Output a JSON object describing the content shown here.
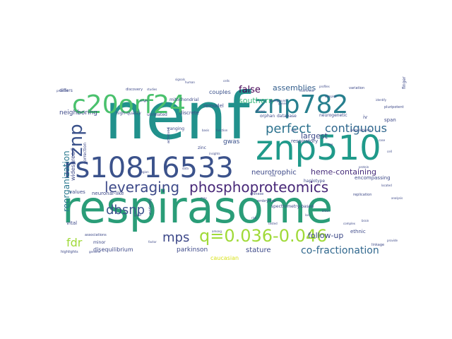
{
  "words": [
    {
      "text": "nenf",
      "color": "#21918c"
    },
    {
      "text": "respirasome",
      "color": "#2a9d78"
    },
    {
      "text": "znp510",
      "color": "#1f9a8a"
    },
    {
      "text": "znp782",
      "color": "#277f8e"
    },
    {
      "text": "c20orf24",
      "color": "#4ac16d"
    },
    {
      "text": "rs10816533",
      "color": "#3b528b"
    },
    {
      "text": "q=0.036-0.046",
      "color": "#a0da39"
    },
    {
      "text": "phosphoproteomics",
      "color": "#482878"
    },
    {
      "text": "leveraging",
      "color": "#3e4a89"
    },
    {
      "text": "perfect",
      "color": "#2c728e"
    },
    {
      "text": "contiguous",
      "color": "#31688e"
    },
    {
      "text": "dbsnp",
      "color": "#3b528b"
    },
    {
      "text": "mps",
      "color": "#3e4989"
    },
    {
      "text": "znp",
      "color": "#3b528b"
    },
    {
      "text": "fdr",
      "color": "#a0da39"
    },
    {
      "text": "co-fractionation",
      "color": "#31688e"
    },
    {
      "text": "heme-containing",
      "color": "#472d7b"
    },
    {
      "text": "reorganization",
      "color": "#2a788e"
    },
    {
      "text": "largest",
      "color": "#3e4a89"
    },
    {
      "text": "false",
      "color": "#440154"
    },
    {
      "text": "assemblies",
      "color": "#355f8d"
    },
    {
      "text": "southern",
      "color": "#35b779"
    },
    {
      "text": "neurotrophic",
      "color": "#3e4a89"
    },
    {
      "text": "gwas",
      "color": "#3b528b"
    },
    {
      "text": "follow-up",
      "color": "#3e4a89"
    },
    {
      "text": "stature",
      "color": "#3e4a89"
    },
    {
      "text": "parkinson",
      "color": "#3e4a89"
    },
    {
      "text": "caucasian",
      "color": "#d8e219"
    },
    {
      "text": "neighboring",
      "color": "#3e4a89"
    },
    {
      "text": "couples",
      "color": "#3b528b"
    },
    {
      "text": "disequilibrium",
      "color": "#3e4a89"
    },
    {
      "text": "neuronal-like",
      "color": "#3e4a89"
    },
    {
      "text": "values",
      "color": "#3e4a89"
    },
    {
      "text": "vital",
      "color": "#3e4a89"
    },
    {
      "text": "ethnic",
      "color": "#3e4a89"
    },
    {
      "text": "remodel",
      "color": "#3e4a89"
    },
    {
      "text": "discrete",
      "color": "#3e4a89"
    },
    {
      "text": "respiratory",
      "color": "#3e4a89"
    },
    {
      "text": "widespread",
      "color": "#3e4a89"
    },
    {
      "text": "correction",
      "color": "#3e4a89"
    },
    {
      "text": "encompassing",
      "color": "#3e4a89"
    },
    {
      "text": "haplotype",
      "color": "#3e4a89"
    },
    {
      "text": "span",
      "color": "#3e4a89"
    },
    {
      "text": "iv",
      "color": "#3e4a89"
    },
    {
      "text": "mitochondrial",
      "color": "#3e4a89"
    },
    {
      "text": "high-quality",
      "color": "#3e4a89"
    },
    {
      "text": "unrelated",
      "color": "#3e4a89"
    },
    {
      "text": "database",
      "color": "#3e4a89"
    },
    {
      "text": "orphan",
      "color": "#3e4a89"
    },
    {
      "text": "neurogenetic",
      "color": "#3e4a89"
    },
    {
      "text": "spectrometry-based",
      "color": "#3e4a89"
    },
    {
      "text": "ranging",
      "color": "#3e4a89"
    },
    {
      "text": "minor",
      "color": "#3e4a89"
    },
    {
      "text": "linkage",
      "color": "#3e4a89"
    },
    {
      "text": "chinese",
      "color": "#3e4a89"
    },
    {
      "text": "embryonal",
      "color": "#3e4a89"
    },
    {
      "text": "differs",
      "color": "#3e4a89"
    },
    {
      "text": "pluripotent",
      "color": "#3e4a89"
    },
    {
      "text": "replication",
      "color": "#3e4a89"
    },
    {
      "text": "variation",
      "color": "#3e4a89"
    },
    {
      "text": "populations",
      "color": "#3e4a89"
    },
    {
      "text": "associations",
      "color": "#3e4a89"
    },
    {
      "text": "highlights",
      "color": "#3e4a89"
    },
    {
      "text": "finger",
      "color": "#3e4a89"
    },
    {
      "text": "evidently",
      "color": "#3e4a89"
    },
    {
      "text": "zinc",
      "color": "#3e4a89"
    },
    {
      "text": "achieved",
      "color": "#3e4a89"
    },
    {
      "text": "background",
      "color": "#3e4a89"
    },
    {
      "text": "strong",
      "color": "#3e4a89"
    },
    {
      "text": "insights",
      "color": "#3e4a89"
    },
    {
      "text": "basis",
      "color": "#3e4a89"
    },
    {
      "text": "function",
      "color": "#3e4a89"
    },
    {
      "text": "region",
      "color": "#3e4a89"
    },
    {
      "text": "genome",
      "color": "#3e4a89"
    },
    {
      "text": "human",
      "color": "#3e4a89"
    },
    {
      "text": "profiles",
      "color": "#3e4a89"
    },
    {
      "text": "studies",
      "color": "#3e4a89"
    },
    {
      "text": "proteins",
      "color": "#3e4a89"
    },
    {
      "text": "discovery",
      "color": "#3e4a89"
    },
    {
      "text": "tested",
      "color": "#3e4a89"
    },
    {
      "text": "identify",
      "color": "#3e4a89"
    },
    {
      "text": "black",
      "color": "#3e4a89"
    },
    {
      "text": "provide",
      "color": "#3e4a89"
    },
    {
      "text": "confirmed",
      "color": "#3e4a89"
    },
    {
      "text": "factor",
      "color": "#3e4a89"
    },
    {
      "text": "samples",
      "color": "#3e4a89"
    },
    {
      "text": "single",
      "color": "#3e4a89"
    },
    {
      "text": "role",
      "color": "#3e4a89"
    },
    {
      "text": "cell",
      "color": "#3e4a89"
    },
    {
      "text": "signals",
      "color": "#3e4a89"
    },
    {
      "text": "located",
      "color": "#3e4a89"
    },
    {
      "text": "among",
      "color": "#3e4a89"
    },
    {
      "text": "brain",
      "color": "#3e4a89"
    },
    {
      "text": "analysis",
      "color": "#3e4a89"
    },
    {
      "text": "protein",
      "color": "#3e4a89"
    },
    {
      "text": "complex",
      "color": "#3e4a89"
    },
    {
      "text": "cells",
      "color": "#3e4a89"
    },
    {
      "text": "genes",
      "color": "#3e4a89"
    },
    {
      "text": "gene",
      "color": "#3e4a89"
    },
    {
      "text": "loci",
      "color": "#3e4a89"
    },
    {
      "text": "risk",
      "color": "#3e4a89"
    },
    {
      "text": "data",
      "color": "#3e4a89"
    },
    {
      "text": "case",
      "color": "#3e4a89"
    },
    {
      "text": "new",
      "color": "#3e4a89"
    },
    {
      "text": "two",
      "color": "#3e4a89"
    },
    {
      "text": "may",
      "color": "#3e4a89"
    }
  ]
}
